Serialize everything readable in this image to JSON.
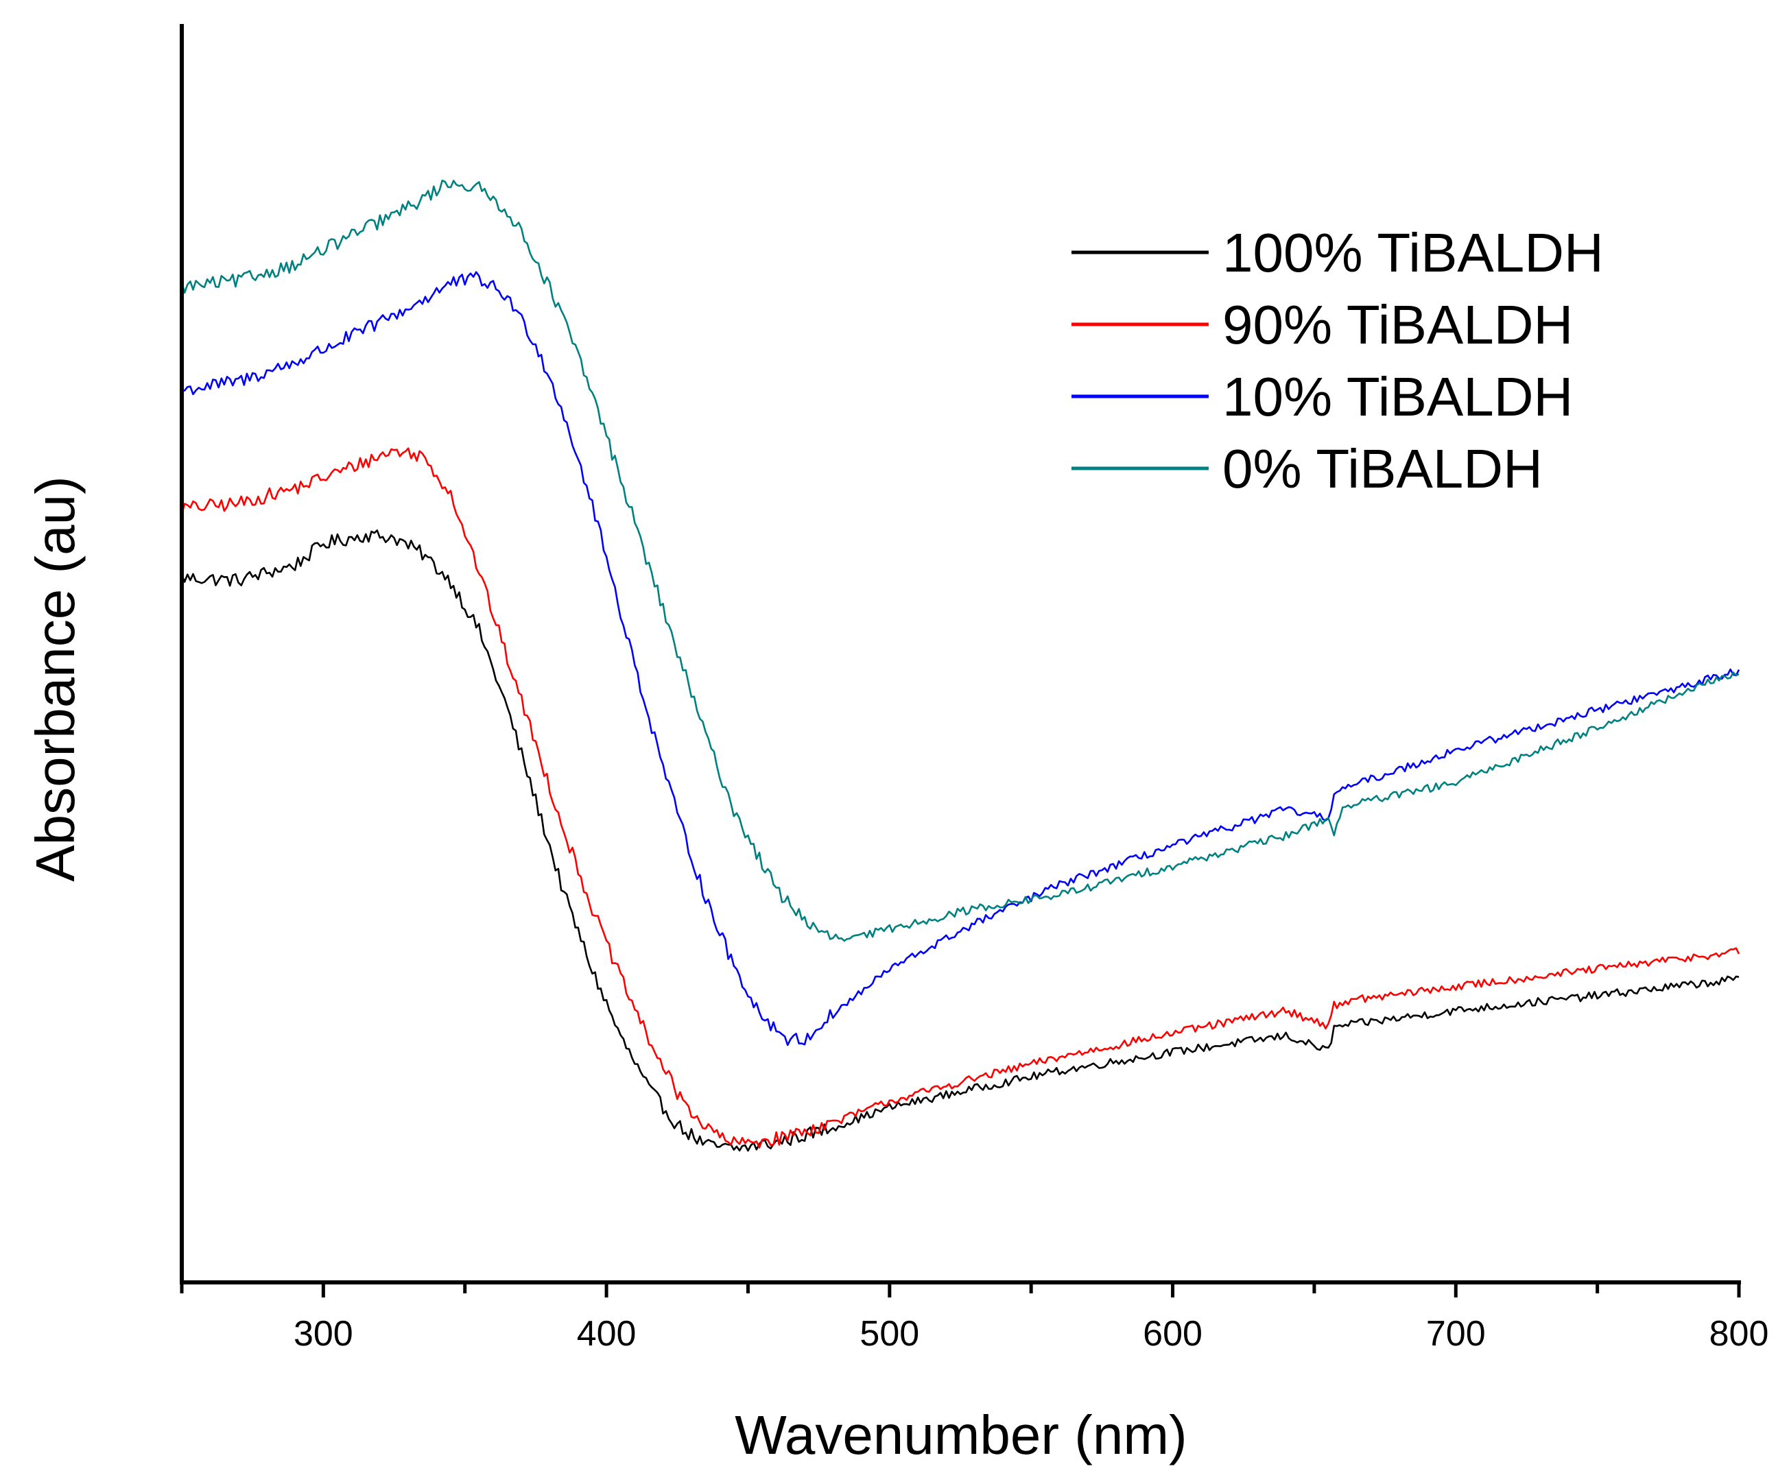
{
  "chart_data": {
    "type": "line",
    "title": "",
    "xlabel": "Wavenumber (nm)",
    "ylabel": "Absorbance (au)",
    "xlim": [
      250,
      800
    ],
    "ylim": [
      0,
      100
    ],
    "xticks": [
      300,
      400,
      500,
      600,
      700,
      800
    ],
    "xtick_labels": [
      "300",
      "400",
      "500",
      "600",
      "700",
      "800"
    ],
    "y_tick_labels_shown": false,
    "legend_position": "top-right",
    "series": [
      {
        "name": "100% TiBALDH",
        "color": "#000000",
        "x": [
          250,
          270,
          290,
          300,
          315,
          325,
          335,
          345,
          355,
          365,
          375,
          385,
          395,
          405,
          415,
          425,
          435,
          445,
          460,
          480,
          500,
          530,
          560,
          600,
          640,
          655,
          657,
          660,
          700,
          750,
          800
        ],
        "y": [
          56.0,
          55.8,
          57.0,
          58.7,
          59.4,
          59.2,
          57.9,
          55.7,
          51.8,
          45.6,
          38.3,
          30.9,
          24.8,
          19.5,
          15.4,
          12.5,
          10.9,
          10.6,
          11.1,
          12.3,
          13.9,
          15.4,
          16.8,
          18.3,
          19.6,
          18.4,
          20.2,
          20.4,
          21.6,
          22.8,
          24.1
        ]
      },
      {
        "name": "90% TiBALDH",
        "color": "#ff0000",
        "x": [
          250,
          270,
          290,
          310,
          325,
          335,
          345,
          355,
          365,
          375,
          385,
          395,
          405,
          415,
          425,
          435,
          445,
          460,
          480,
          500,
          530,
          560,
          600,
          640,
          655,
          657,
          660,
          700,
          750,
          800
        ],
        "y": [
          61.5,
          61.9,
          63.1,
          64.8,
          66.1,
          65.7,
          62.7,
          56.5,
          49.6,
          42.8,
          35.9,
          29.7,
          24.2,
          19.3,
          15.0,
          12.3,
          11.0,
          11.4,
          12.7,
          14.4,
          16.2,
          17.9,
          19.8,
          21.6,
          20.4,
          22.0,
          22.3,
          23.5,
          24.9,
          26.3
        ]
      },
      {
        "name": "10% TiBALDH",
        "color": "#0000ff",
        "x": [
          250,
          270,
          290,
          310,
          330,
          345,
          355,
          365,
          375,
          385,
          395,
          405,
          415,
          425,
          435,
          445,
          455,
          465,
          470,
          480,
          500,
          530,
          560,
          600,
          640,
          655,
          657,
          660,
          700,
          750,
          800
        ],
        "y": [
          70.9,
          71.6,
          73.1,
          75.2,
          77.4,
          79.4,
          79.8,
          78.3,
          74.6,
          69.0,
          61.8,
          53.3,
          44.9,
          37.2,
          30.6,
          25.1,
          21.1,
          19.2,
          19.3,
          21.3,
          24.9,
          28.5,
          31.6,
          34.7,
          37.6,
          36.8,
          39.0,
          39.2,
          42.3,
          45.5,
          48.6
        ]
      },
      {
        "name": "0% TiBALDH",
        "color": "#008080",
        "x": [
          250,
          270,
          290,
          310,
          330,
          345,
          355,
          365,
          375,
          385,
          395,
          405,
          415,
          425,
          435,
          445,
          460,
          475,
          485,
          500,
          530,
          560,
          600,
          640,
          655,
          657,
          660,
          700,
          750,
          800
        ],
        "y": [
          79.1,
          79.6,
          80.9,
          83.2,
          85.4,
          87.5,
          86.9,
          85.2,
          81.4,
          76.5,
          70.6,
          63.9,
          56.9,
          50.1,
          43.5,
          37.5,
          31.2,
          27.7,
          27.2,
          28.1,
          29.7,
          30.8,
          33.1,
          35.5,
          36.9,
          35.6,
          37.8,
          39.7,
          44.1,
          48.6
        ]
      }
    ]
  }
}
